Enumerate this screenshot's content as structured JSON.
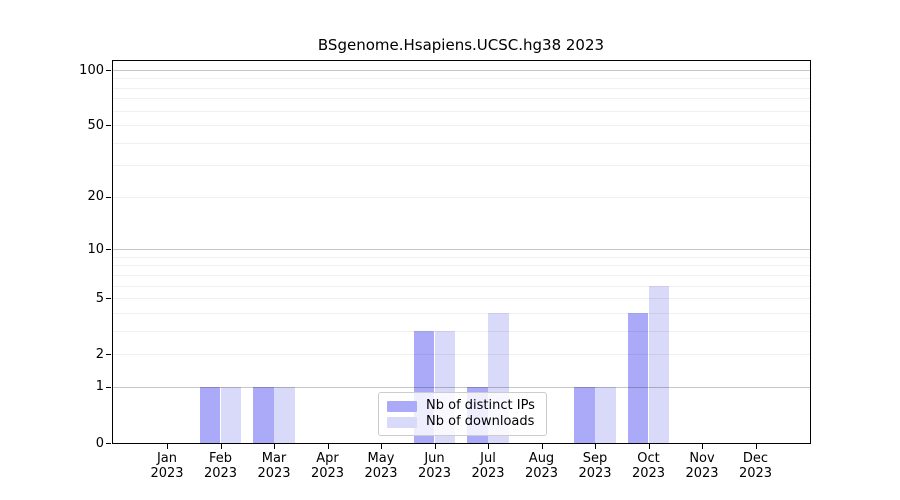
{
  "title": "BSgenome.Hsapiens.UCSC.hg38 2023",
  "chart_data": {
    "type": "bar",
    "title": "BSgenome.Hsapiens.UCSC.hg38 2023",
    "categories": [
      "Jan",
      "Feb",
      "Mar",
      "Apr",
      "May",
      "Jun",
      "Jul",
      "Aug",
      "Sep",
      "Oct",
      "Nov",
      "Dec"
    ],
    "year_label": "2023",
    "series": [
      {
        "name": "Nb of distinct IPs",
        "color": "#aaaaf8",
        "values": [
          0,
          1,
          1,
          0,
          0,
          3,
          1,
          0,
          1,
          4,
          0,
          0
        ]
      },
      {
        "name": "Nb of downloads",
        "color": "#d9d9f9",
        "values": [
          0,
          1,
          1,
          0,
          0,
          3,
          4,
          0,
          1,
          6,
          0,
          0
        ]
      }
    ],
    "xlabel": "",
    "ylabel": "",
    "yscale": "log1p",
    "ylim": [
      0,
      113
    ],
    "yticks": [
      {
        "label": "0",
        "value": 0
      },
      {
        "label": "1",
        "value": 1
      },
      {
        "label": "2",
        "value": 2
      },
      {
        "label": "5",
        "value": 5
      },
      {
        "label": "10",
        "value": 10
      },
      {
        "label": "20",
        "value": 20
      },
      {
        "label": "50",
        "value": 50
      },
      {
        "label": "100",
        "value": 100
      }
    ],
    "grid": "on",
    "grid_major_values": [
      1,
      10,
      100
    ],
    "grid_minor_values": [
      2,
      3,
      4,
      5,
      6,
      7,
      8,
      9,
      20,
      30,
      40,
      50,
      60,
      70,
      80,
      90
    ],
    "legend_position": "bottom-center-inside",
    "colors": {
      "grid_major": "#c7c7c7",
      "grid_minor": "#f0f0f0",
      "axis": "#000000",
      "background": "#ffffff"
    }
  }
}
